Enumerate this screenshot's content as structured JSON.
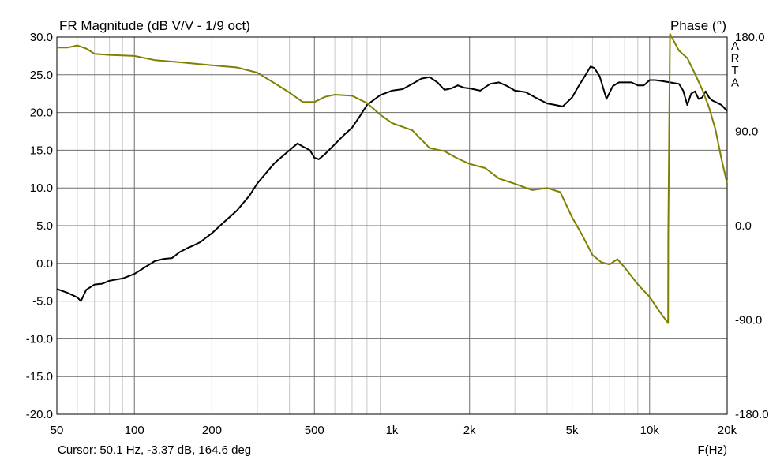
{
  "chart_data": {
    "type": "line",
    "title": "FR Magnitude (dB V/V - 1/9 oct)",
    "right_axis_title": "Phase (°)",
    "watermark": "ARTA",
    "xlabel": "F(Hz)",
    "x_scale": "log",
    "xlim": [
      50,
      20000
    ],
    "x_ticks": [
      {
        "value": 50,
        "label": "50"
      },
      {
        "value": 100,
        "label": "100"
      },
      {
        "value": 200,
        "label": "200"
      },
      {
        "value": 500,
        "label": "500"
      },
      {
        "value": 1000,
        "label": "1k"
      },
      {
        "value": 2000,
        "label": "2k"
      },
      {
        "value": 5000,
        "label": "5k"
      },
      {
        "value": 10000,
        "label": "10k"
      },
      {
        "value": 20000,
        "label": "20k"
      }
    ],
    "ylim": [
      -20,
      30
    ],
    "y_ticks": [
      {
        "value": 30,
        "label": "30.0"
      },
      {
        "value": 25,
        "label": "25.0"
      },
      {
        "value": 20,
        "label": "20.0"
      },
      {
        "value": 15,
        "label": "15.0"
      },
      {
        "value": 10,
        "label": "10.0"
      },
      {
        "value": 5,
        "label": "5.0"
      },
      {
        "value": 0,
        "label": "0.0"
      },
      {
        "value": -5,
        "label": "-5.0"
      },
      {
        "value": -10,
        "label": "-10.0"
      },
      {
        "value": -15,
        "label": "-15.0"
      },
      {
        "value": -20,
        "label": "-20.0"
      }
    ],
    "y2lim": [
      -180,
      180
    ],
    "y2_ticks": [
      {
        "value": 180,
        "label": "180.0"
      },
      {
        "value": 90,
        "label": "90.0"
      },
      {
        "value": 0,
        "label": "0.0"
      },
      {
        "value": -90,
        "label": "-90.0"
      },
      {
        "value": -180,
        "label": "-180.0"
      }
    ],
    "grid": true,
    "cursor_text": "Cursor: 50.1 Hz, -3.37 dB, 164.6 deg",
    "series": [
      {
        "key": "magnitude",
        "axis": "left",
        "color": "#000000",
        "x": [
          50,
          55,
          60,
          62,
          65,
          70,
          75,
          80,
          90,
          100,
          110,
          120,
          130,
          140,
          150,
          160,
          170,
          180,
          200,
          220,
          250,
          280,
          300,
          350,
          400,
          430,
          450,
          480,
          500,
          520,
          550,
          600,
          650,
          700,
          750,
          800,
          900,
          1000,
          1100,
          1200,
          1300,
          1400,
          1500,
          1600,
          1700,
          1800,
          1900,
          2000,
          2200,
          2400,
          2600,
          2800,
          3000,
          3300,
          3600,
          4000,
          4300,
          4600,
          5000,
          5300,
          5600,
          5900,
          6100,
          6400,
          6800,
          7200,
          7600,
          8000,
          8500,
          9000,
          9500,
          10000,
          10500,
          11000,
          12000,
          13000,
          13500,
          14000,
          14500,
          15000,
          15500,
          16000,
          16500,
          17000,
          17500,
          18000,
          19000,
          20000
        ],
        "y": [
          -3.4,
          -3.9,
          -4.5,
          -5.0,
          -3.5,
          -2.8,
          -2.7,
          -2.3,
          -2.0,
          -1.4,
          -0.5,
          0.3,
          0.6,
          0.7,
          1.5,
          2.0,
          2.4,
          2.8,
          4.0,
          5.3,
          7.0,
          9.0,
          10.6,
          13.3,
          15.0,
          15.9,
          15.5,
          15.0,
          14.0,
          13.8,
          14.5,
          15.8,
          17.0,
          18.0,
          19.5,
          21.0,
          22.3,
          22.9,
          23.1,
          23.8,
          24.5,
          24.7,
          24.0,
          23.0,
          23.2,
          23.6,
          23.3,
          23.2,
          22.9,
          23.8,
          24.0,
          23.5,
          22.9,
          22.7,
          22.0,
          21.2,
          21.0,
          20.8,
          22.0,
          23.5,
          24.8,
          26.1,
          25.9,
          24.8,
          21.8,
          23.5,
          24.0,
          24.0,
          24.0,
          23.6,
          23.6,
          24.3,
          24.3,
          24.2,
          24.0,
          23.8,
          22.9,
          21.0,
          22.5,
          22.8,
          21.8,
          22.0,
          22.8,
          22.0,
          21.6,
          21.4,
          21.0,
          20.2
        ]
      },
      {
        "key": "phase",
        "axis": "right",
        "color": "#808000",
        "x": [
          50,
          55,
          60,
          65,
          70,
          80,
          100,
          120,
          150,
          200,
          250,
          300,
          350,
          400,
          450,
          500,
          550,
          600,
          700,
          800,
          900,
          1000,
          1200,
          1400,
          1600,
          1800,
          2000,
          2300,
          2600,
          3000,
          3500,
          4000,
          4500,
          5000,
          5500,
          6000,
          6500,
          7000,
          7500,
          8000,
          9000,
          10000,
          11000,
          11800,
          11810,
          12000,
          13000,
          14000,
          15000,
          16000,
          17000,
          18000,
          19000,
          20000
        ],
        "y": [
          170,
          170,
          172,
          169,
          164,
          163,
          162,
          158,
          156,
          153,
          151,
          146,
          136,
          127,
          118,
          118,
          123,
          125,
          124,
          117,
          106,
          98,
          91,
          74,
          71,
          64,
          59,
          55,
          45,
          40,
          34,
          36,
          32,
          8,
          -10,
          -28,
          -35,
          -37,
          -32,
          -40,
          -56,
          -68,
          -83,
          -93,
          -10,
          183,
          167,
          160,
          145,
          130,
          113,
          92,
          64,
          40
        ]
      }
    ]
  }
}
